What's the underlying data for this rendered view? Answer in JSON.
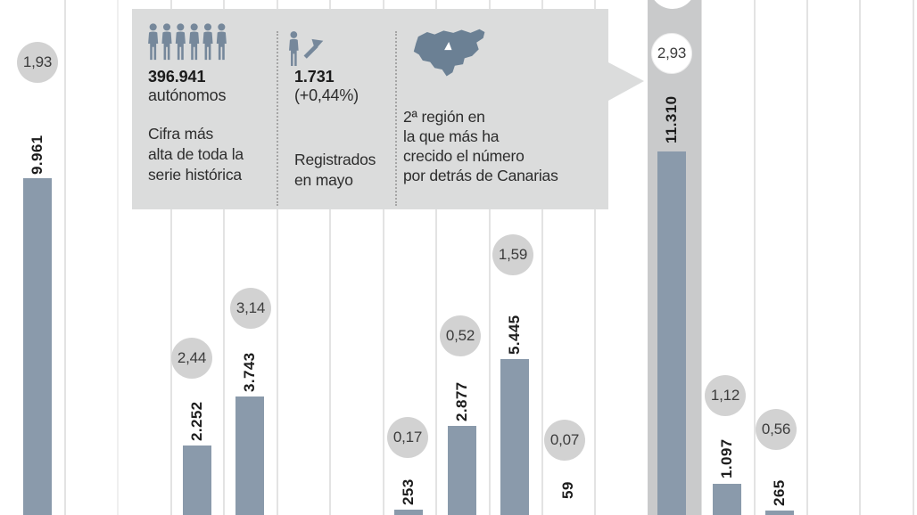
{
  "infobox": {
    "stat_autonomos": {
      "value": "396.941",
      "unit": "autónomos",
      "description_lines": [
        "Cifra más",
        "alta de toda la",
        "serie histórica"
      ]
    },
    "stat_registered": {
      "value": "1.731",
      "delta": "(+0,44%)",
      "description_lines": [
        "Registrados",
        "en mayo"
      ]
    },
    "stat_region": {
      "description_lines": [
        "2ª región en",
        "la que más ha",
        "crecido el número",
        "por detrás de Canarias"
      ]
    }
  },
  "chart_data": {
    "type": "bar",
    "bars": [
      {
        "value_label": "9.961",
        "value": 9961,
        "growth_pct_label": "1,93",
        "growth_pct": 1.93,
        "highlighted": false
      },
      {
        "value_label": "2.252",
        "value": 2252,
        "growth_pct_label": "2,44",
        "growth_pct": 2.44,
        "highlighted": false
      },
      {
        "value_label": "3.743",
        "value": 3743,
        "growth_pct_label": "3,14",
        "growth_pct": 3.14,
        "highlighted": false
      },
      {
        "value_label": "253",
        "value": 253,
        "growth_pct_label": "0,17",
        "growth_pct": 0.17,
        "highlighted": false
      },
      {
        "value_label": "2.877",
        "value": 2877,
        "growth_pct_label": "0,52",
        "growth_pct": 0.52,
        "highlighted": false
      },
      {
        "value_label": "5.445",
        "value": 5445,
        "growth_pct_label": "1,59",
        "growth_pct": 1.59,
        "highlighted": false
      },
      {
        "value_label": "59",
        "value": 59,
        "growth_pct_label": "0,07",
        "growth_pct": 0.07,
        "highlighted": false
      },
      {
        "value_label": "11.310",
        "value": 11310,
        "growth_pct_label": "2,93",
        "growth_pct": 2.93,
        "highlighted": true
      },
      {
        "value_label": "1.097",
        "value": 1097,
        "growth_pct_label": "1,12",
        "growth_pct": 1.12,
        "highlighted": false
      },
      {
        "value_label": "265",
        "value": 265,
        "growth_pct_label": "0,56",
        "growth_pct": 0.56,
        "highlighted": false
      }
    ],
    "grid": "vertical-columns",
    "legend_note": ""
  },
  "colors": {
    "bar": "#8a9aab",
    "badge_bg": "#d2d2d2",
    "badge_highlight_bg": "#ffffff",
    "infobox_bg": "#dbdcdc",
    "highlight_column": "#c9cacb",
    "icon": "#76889b",
    "map_icon": "#6b8094",
    "gridline": "#e3e3e3"
  }
}
